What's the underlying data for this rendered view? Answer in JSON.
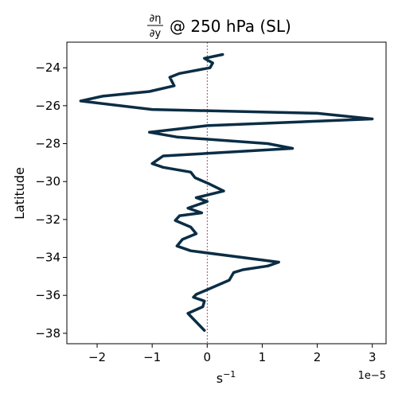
{
  "chart_data": {
    "type": "line",
    "title_fraction_num": "∂η",
    "title_fraction_den": "∂y",
    "title_rest": "@ 250 hPa (SL)",
    "xlabel_base": "s",
    "xlabel_exp": "−1",
    "ylabel": "Latitude",
    "x_offset_label": "1e−5",
    "xlim": [
      -2.55,
      3.25
    ],
    "ylim": [
      -38.55,
      -22.65
    ],
    "x_ticks": [
      -2,
      -1,
      0,
      1,
      2,
      3
    ],
    "x_tick_labels": [
      "−2",
      "−1",
      "0",
      "1",
      "2",
      "3"
    ],
    "y_ticks": [
      -24,
      -26,
      -28,
      -30,
      -32,
      -34,
      -36,
      -38
    ],
    "y_tick_labels": [
      "−24",
      "−26",
      "−28",
      "−30",
      "−32",
      "−34",
      "−36",
      "−38"
    ],
    "line_color": "#0b2d45",
    "zero_line_color": "#8b2252",
    "series": [
      {
        "x": [
          0.28,
          -0.05,
          0.1,
          0.05,
          -0.5,
          -0.68,
          -0.6,
          -1.05,
          -1.9,
          -2.3,
          -1.0,
          2.0,
          3.0,
          0.0,
          -1.05,
          -0.55,
          1.1,
          1.55,
          -0.8,
          -1.0,
          -0.8,
          -0.3,
          -0.22,
          0.02,
          0.3,
          -0.2,
          0.0,
          -0.35,
          -0.1,
          -0.5,
          -0.58,
          -0.3,
          -0.2,
          -0.45,
          -0.55,
          -0.3,
          1.3,
          1.1,
          0.65,
          0.48,
          0.4,
          0.2,
          0.0,
          -0.2,
          -0.25,
          -0.05,
          -0.08,
          -0.35,
          -0.05
        ],
        "y": [
          -23.3,
          -23.5,
          -23.75,
          -24.0,
          -24.3,
          -24.5,
          -24.95,
          -25.25,
          -25.5,
          -25.75,
          -26.2,
          -26.4,
          -26.7,
          -27.05,
          -27.4,
          -27.65,
          -28.0,
          -28.25,
          -28.65,
          -29.05,
          -29.25,
          -29.5,
          -29.8,
          -30.1,
          -30.5,
          -30.85,
          -31.05,
          -31.4,
          -31.65,
          -31.8,
          -32.05,
          -32.4,
          -32.75,
          -33.05,
          -33.4,
          -33.65,
          -34.25,
          -34.45,
          -34.65,
          -34.8,
          -35.2,
          -35.45,
          -35.7,
          -35.95,
          -36.1,
          -36.3,
          -36.6,
          -36.95,
          -37.85
        ]
      }
    ]
  }
}
